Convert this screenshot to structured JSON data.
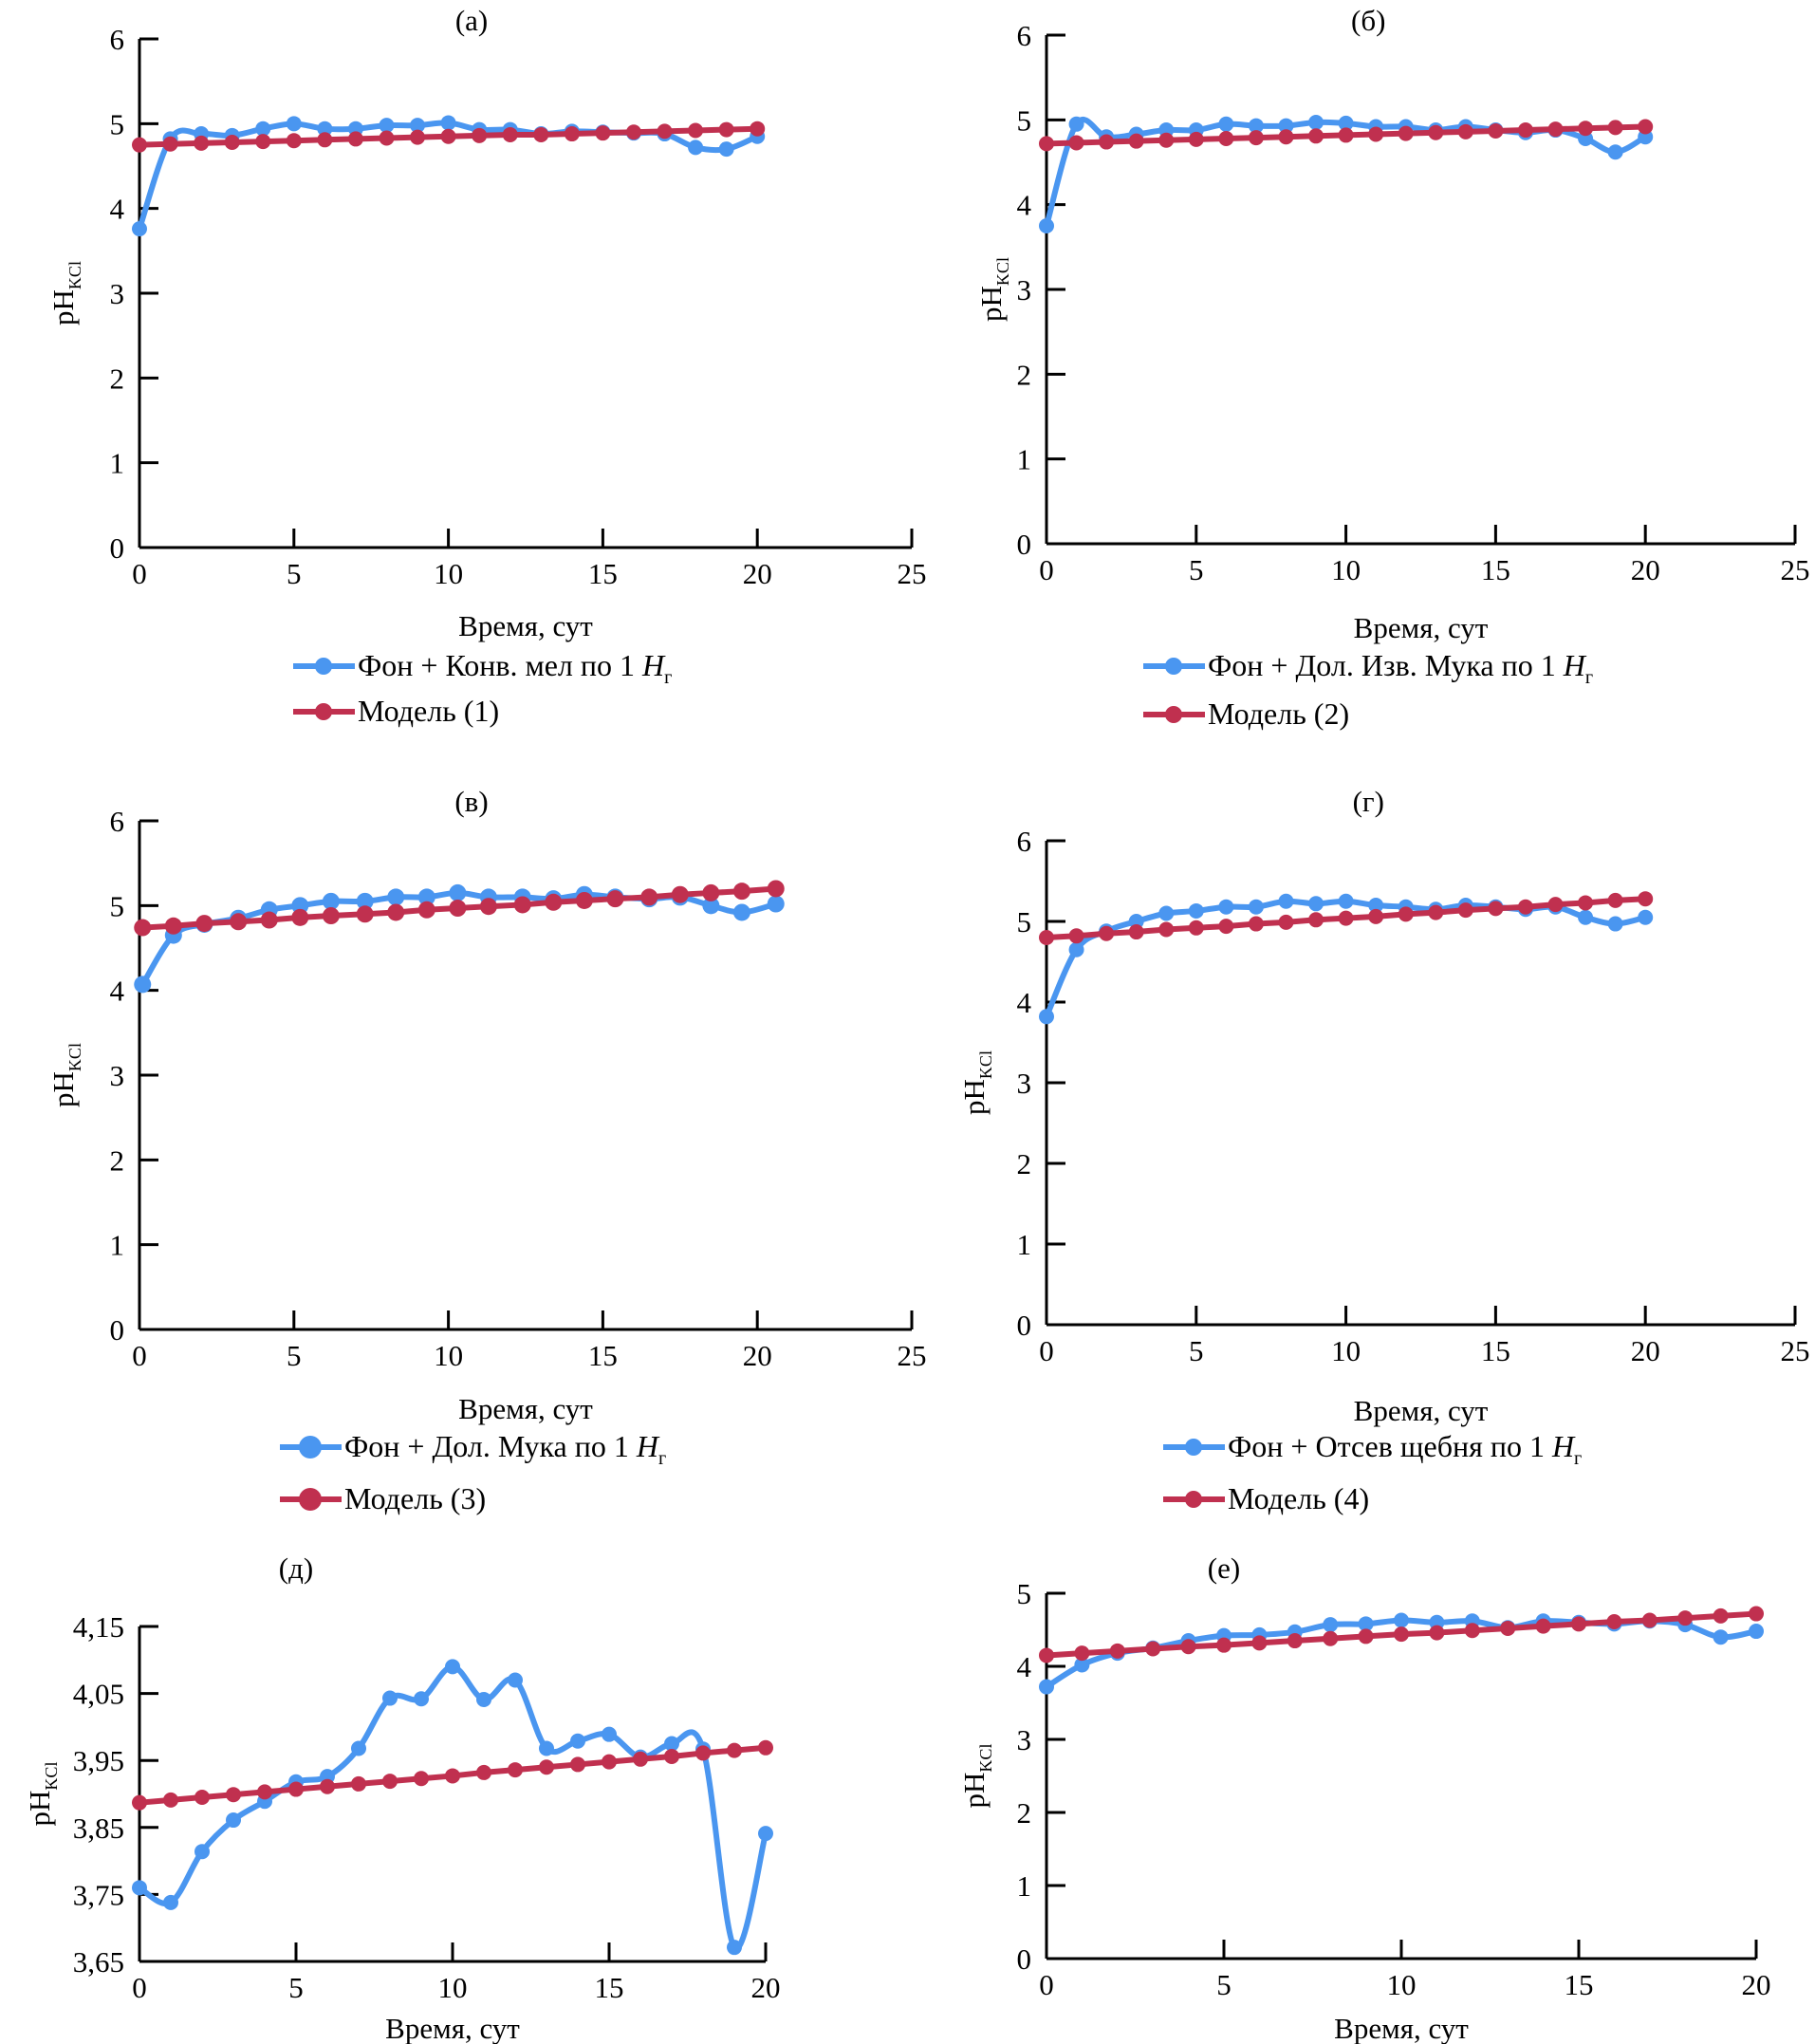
{
  "colors": {
    "experiment": "#4a96f0",
    "model": "#c0304f"
  },
  "chart_data": [
    {
      "type": "line",
      "title": "(а)",
      "xlabel": "Время, сут",
      "ylabel": "pH",
      "ylabel_sub": "KCl",
      "xlim": [
        0,
        25
      ],
      "ylim": [
        0,
        6
      ],
      "xticks": [
        0,
        5,
        10,
        15,
        20,
        25
      ],
      "ytick_labels": [
        "0",
        "1",
        "2",
        "3",
        "4",
        "5",
        "6"
      ],
      "yticks": [
        0,
        1,
        2,
        3,
        4,
        5,
        6
      ],
      "x": [
        0,
        1,
        2,
        3,
        4,
        5,
        6,
        7,
        8,
        9,
        10,
        11,
        12,
        13,
        14,
        15,
        16,
        17,
        18,
        19,
        20
      ],
      "series": [
        {
          "name": "Фон + Конв. мел по 1 ",
          "name_italic": "H",
          "name_sub": "г",
          "role": "experiment",
          "values": [
            3.76,
            4.82,
            4.88,
            4.86,
            4.94,
            5.0,
            4.94,
            4.94,
            4.98,
            4.98,
            5.01,
            4.93,
            4.93,
            4.88,
            4.91,
            4.9,
            4.89,
            4.88,
            4.72,
            4.7,
            4.85
          ]
        },
        {
          "name": "Модель (1)",
          "role": "model",
          "values": [
            4.75,
            4.76,
            4.77,
            4.78,
            4.79,
            4.8,
            4.81,
            4.82,
            4.83,
            4.84,
            4.85,
            4.86,
            4.87,
            4.87,
            4.88,
            4.89,
            4.9,
            4.91,
            4.92,
            4.93,
            4.94
          ]
        }
      ]
    },
    {
      "type": "line",
      "title": "(б)",
      "xlabel": "Время, сут",
      "ylabel": "pH",
      "ylabel_sub": "KCl",
      "xlim": [
        0,
        25
      ],
      "ylim": [
        0,
        6
      ],
      "xticks": [
        0,
        5,
        10,
        15,
        20,
        25
      ],
      "ytick_labels": [
        "0",
        "1",
        "2",
        "3",
        "4",
        "5",
        "6"
      ],
      "yticks": [
        0,
        1,
        2,
        3,
        4,
        5,
        6
      ],
      "x": [
        0,
        1,
        2,
        3,
        4,
        5,
        6,
        7,
        8,
        9,
        10,
        11,
        12,
        13,
        14,
        15,
        16,
        17,
        18,
        19,
        20
      ],
      "series": [
        {
          "name": "Фон + Дол. Изв. Мука по 1 ",
          "name_italic": "H",
          "name_sub": "г",
          "role": "experiment",
          "values": [
            3.75,
            4.95,
            4.8,
            4.83,
            4.88,
            4.88,
            4.95,
            4.93,
            4.93,
            4.97,
            4.96,
            4.92,
            4.92,
            4.88,
            4.92,
            4.88,
            4.85,
            4.88,
            4.78,
            4.62,
            4.8
          ]
        },
        {
          "name": "Модель (2)",
          "role": "model",
          "values": [
            4.72,
            4.73,
            4.74,
            4.75,
            4.76,
            4.77,
            4.78,
            4.79,
            4.8,
            4.81,
            4.82,
            4.83,
            4.84,
            4.85,
            4.86,
            4.87,
            4.88,
            4.89,
            4.9,
            4.91,
            4.92
          ]
        }
      ]
    },
    {
      "type": "line",
      "title": "(в)",
      "xlabel": "Время, сут",
      "ylabel": "pH",
      "ylabel_sub": "KCl",
      "xlim": [
        0,
        25
      ],
      "ylim": [
        0,
        6
      ],
      "xticks": [
        0,
        5,
        10,
        15,
        20,
        25
      ],
      "ytick_labels": [
        "0",
        "1",
        "2",
        "3",
        "4",
        "5",
        "6"
      ],
      "yticks": [
        0,
        1,
        2,
        3,
        4,
        5,
        6
      ],
      "x": [
        0.1,
        1.1,
        2.1,
        3.2,
        4.2,
        5.2,
        6.2,
        7.3,
        8.3,
        9.3,
        10.3,
        11.3,
        12.4,
        13.4,
        14.4,
        15.4,
        16.5,
        17.5,
        18.5,
        19.5,
        20.6
      ],
      "series": [
        {
          "name": "Фон + Дол. Мука по 1 ",
          "name_italic": "H",
          "name_sub": "г",
          "role": "experiment",
          "values": [
            4.07,
            4.65,
            4.78,
            4.85,
            4.95,
            5.0,
            5.05,
            5.05,
            5.1,
            5.1,
            5.15,
            5.1,
            5.1,
            5.08,
            5.13,
            5.1,
            5.08,
            5.1,
            5.0,
            4.92,
            5.02
          ]
        },
        {
          "name": "Модель (3)",
          "role": "model",
          "values": [
            4.74,
            4.76,
            4.79,
            4.81,
            4.83,
            4.86,
            4.88,
            4.9,
            4.92,
            4.95,
            4.97,
            4.99,
            5.01,
            5.04,
            5.06,
            5.08,
            5.1,
            5.13,
            5.15,
            5.17,
            5.2
          ]
        }
      ]
    },
    {
      "type": "line",
      "title": "(г)",
      "xlabel": "Время, сут",
      "ylabel": "pH",
      "ylabel_sub": "KCl",
      "xlim": [
        0,
        25
      ],
      "ylim": [
        0,
        6
      ],
      "xticks": [
        0,
        5,
        10,
        15,
        20,
        25
      ],
      "ytick_labels": [
        "0",
        "1",
        "2",
        "3",
        "4",
        "5",
        "6"
      ],
      "yticks": [
        0,
        1,
        2,
        3,
        4,
        5,
        6
      ],
      "x": [
        0,
        1,
        2,
        3,
        4,
        5,
        6,
        7,
        8,
        9,
        10,
        11,
        12,
        13,
        14,
        15,
        16,
        17,
        18,
        19,
        20
      ],
      "series": [
        {
          "name": "Фон + Отсев щебня по 1 ",
          "name_italic": "H",
          "name_sub": "г",
          "role": "experiment",
          "values": [
            3.82,
            4.65,
            4.88,
            5.0,
            5.1,
            5.13,
            5.18,
            5.18,
            5.25,
            5.22,
            5.25,
            5.2,
            5.18,
            5.15,
            5.2,
            5.18,
            5.15,
            5.18,
            5.05,
            4.97,
            5.05
          ]
        },
        {
          "name": "Модель (4)",
          "role": "model",
          "values": [
            4.8,
            4.82,
            4.85,
            4.87,
            4.9,
            4.92,
            4.94,
            4.97,
            4.99,
            5.02,
            5.04,
            5.06,
            5.09,
            5.11,
            5.14,
            5.16,
            5.18,
            5.21,
            5.23,
            5.26,
            5.28
          ]
        }
      ]
    },
    {
      "type": "line",
      "title": "(д)",
      "xlabel": "Время, сут",
      "ylabel": "pH",
      "ylabel_sub": "KCl",
      "xlim": [
        0,
        20
      ],
      "ylim": [
        3.65,
        4.15
      ],
      "xticks": [
        0,
        5,
        10,
        15,
        20
      ],
      "ytick_labels": [
        "3,65",
        "3,75",
        "3,85",
        "3,95",
        "4,05",
        "4,15"
      ],
      "yticks": [
        3.65,
        3.75,
        3.85,
        3.95,
        4.05,
        4.15
      ],
      "x": [
        0,
        1,
        2,
        3,
        4,
        5,
        6,
        7,
        8,
        9,
        10,
        11,
        12,
        13,
        14,
        15,
        16,
        17,
        18,
        19,
        20
      ],
      "series": [
        {
          "role": "experiment",
          "values": [
            3.76,
            3.738,
            3.814,
            3.861,
            3.889,
            3.918,
            3.926,
            3.968,
            4.043,
            4.042,
            4.09,
            4.041,
            4.07,
            3.968,
            3.979,
            3.989,
            3.955,
            3.975,
            3.967,
            3.671,
            3.841
          ]
        },
        {
          "role": "model",
          "values": [
            3.887,
            3.891,
            3.895,
            3.899,
            3.903,
            3.907,
            3.911,
            3.915,
            3.919,
            3.923,
            3.927,
            3.932,
            3.936,
            3.94,
            3.944,
            3.948,
            3.952,
            3.956,
            3.961,
            3.965,
            3.969
          ]
        }
      ]
    },
    {
      "type": "line",
      "title": "(е)",
      "xlabel": "Время, сут",
      "ylabel": "pH",
      "ylabel_sub": "KCl",
      "xlim": [
        0,
        20
      ],
      "ylim": [
        0,
        5
      ],
      "xticks": [
        0,
        5,
        10,
        15,
        20
      ],
      "ytick_labels": [
        "0",
        "1",
        "2",
        "3",
        "4",
        "5"
      ],
      "yticks": [
        0,
        1,
        2,
        3,
        4,
        5
      ],
      "x": [
        0,
        1,
        2,
        3,
        4,
        5,
        6,
        7,
        8,
        9,
        10,
        11,
        12,
        13,
        14,
        15,
        16,
        17,
        18,
        19,
        20
      ],
      "series": [
        {
          "role": "experiment",
          "values": [
            3.72,
            4.02,
            4.18,
            4.25,
            4.35,
            4.42,
            4.43,
            4.47,
            4.57,
            4.58,
            4.63,
            4.6,
            4.62,
            4.53,
            4.62,
            4.6,
            4.58,
            4.62,
            4.57,
            4.4,
            4.48
          ]
        },
        {
          "role": "model",
          "values": [
            4.15,
            4.18,
            4.21,
            4.24,
            4.27,
            4.29,
            4.32,
            4.35,
            4.38,
            4.41,
            4.44,
            4.46,
            4.49,
            4.52,
            4.55,
            4.58,
            4.61,
            4.63,
            4.66,
            4.69,
            4.72
          ]
        }
      ]
    }
  ]
}
